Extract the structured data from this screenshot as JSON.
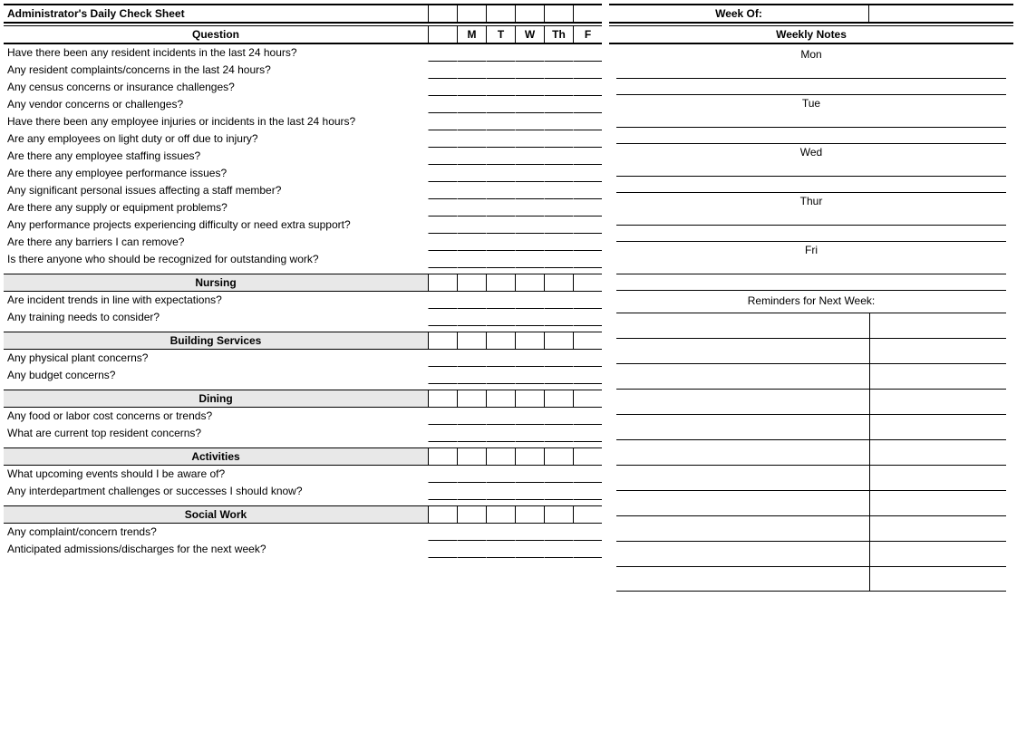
{
  "title": "Administrator's Daily Check Sheet",
  "weekOfLabel": "Week Of:",
  "questionHeader": "Question",
  "weeklyNotesHeader": "Weekly Notes",
  "remindersHeader": "Reminders for Next Week:",
  "dayCols": [
    "M",
    "T",
    "W",
    "Th",
    "F"
  ],
  "noteDays": [
    "Mon",
    "Tue",
    "Wed",
    "Thur",
    "Fri"
  ],
  "general": [
    "Have there been any resident incidents in the last 24 hours?",
    "Any resident complaints/concerns in the last 24 hours?",
    "Any census concerns or insurance challenges?",
    "Any vendor concerns or challenges?",
    "Have there been any employee injuries or incidents in the last 24 hours?",
    "Are any employees on light duty or off due to injury?",
    "Are there any employee staffing issues?",
    "Are there any employee performance issues?",
    "Any significant personal issues affecting a staff member?",
    "Are there any supply or equipment problems?",
    "Any performance projects experiencing difficulty or need extra support?",
    "Are there any barriers I can remove?",
    "Is there anyone who should be recognized for outstanding work?"
  ],
  "sections": [
    {
      "name": "Nursing",
      "questions": [
        "Are incident trends in line with expectations?",
        "Any training needs to consider?"
      ]
    },
    {
      "name": "Building Services",
      "questions": [
        "Any physical plant concerns?",
        "Any budget concerns?"
      ]
    },
    {
      "name": "Dining",
      "questions": [
        "Any food or labor cost concerns or trends?",
        "What are current top resident concerns?"
      ]
    },
    {
      "name": "Activities",
      "questions": [
        "What upcoming events should I be aware of?",
        "Any interdepartment challenges or successes I should know?"
      ]
    },
    {
      "name": "Social Work",
      "questions": [
        "Any complaint/concern trends?",
        "Anticipated admissions/discharges for the next week?"
      ]
    }
  ],
  "reminderRows": 11,
  "style": {
    "fontSizePx": 12,
    "headerBg": "#e8e8e8",
    "borderColor": "#000000"
  }
}
